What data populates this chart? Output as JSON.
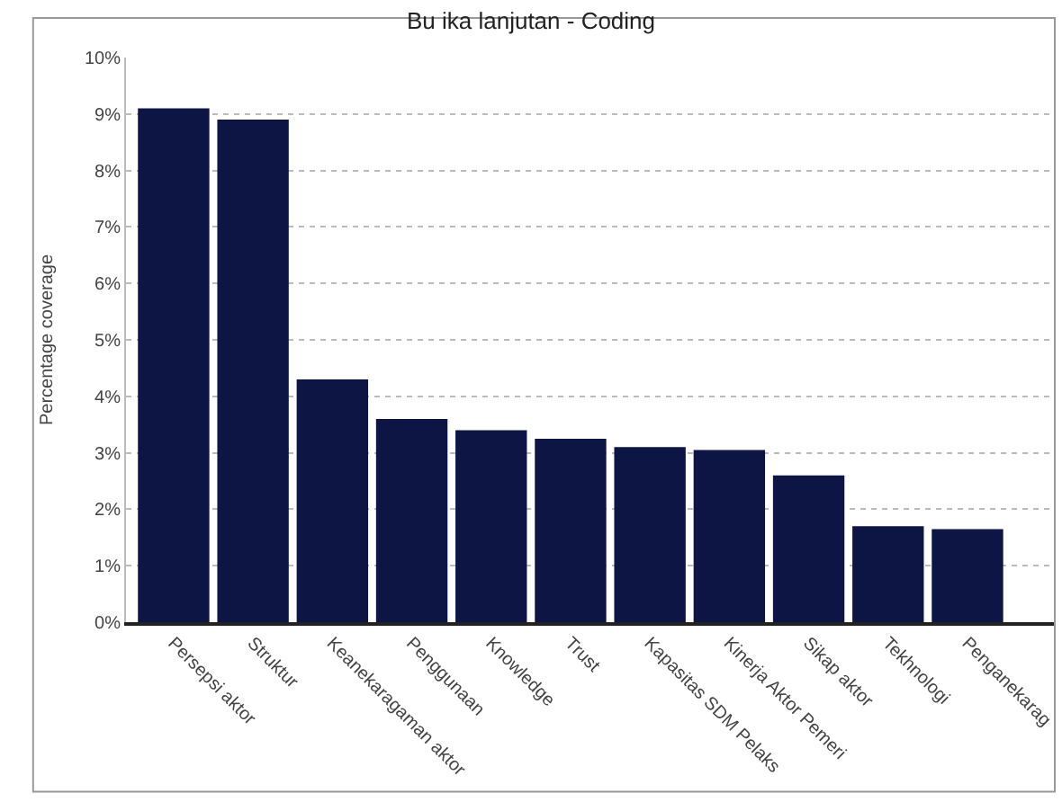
{
  "chart_data": {
    "type": "bar",
    "title": "Bu ika lanjutan - Coding",
    "ylabel": "Percentage coverage",
    "categories": [
      "Persepsi aktor",
      "Struktur",
      "Keanekaragaman aktor",
      "Penggunaan",
      "Knowledge",
      "Trust",
      "Kapasitas SDM Pelaks",
      "Kinerja Aktor Pemeri",
      "Sikap aktor",
      "Tekhnologi",
      "Penganekarag"
    ],
    "values": [
      9.1,
      8.9,
      4.3,
      3.6,
      3.4,
      3.25,
      3.1,
      3.05,
      2.6,
      1.7,
      1.65
    ],
    "color": "#0d1545",
    "ylim": [
      0,
      10
    ],
    "yticks": [
      {
        "value": 0,
        "label": "0%"
      },
      {
        "value": 1,
        "label": "1%"
      },
      {
        "value": 2,
        "label": "2%"
      },
      {
        "value": 3,
        "label": "3%"
      },
      {
        "value": 4,
        "label": "4%"
      },
      {
        "value": 5,
        "label": "5%"
      },
      {
        "value": 6,
        "label": "6%"
      },
      {
        "value": 7,
        "label": "7%"
      },
      {
        "value": 8,
        "label": "8%"
      },
      {
        "value": 9,
        "label": "9%"
      },
      {
        "value": 10,
        "label": "10%"
      }
    ],
    "grid": "y"
  }
}
